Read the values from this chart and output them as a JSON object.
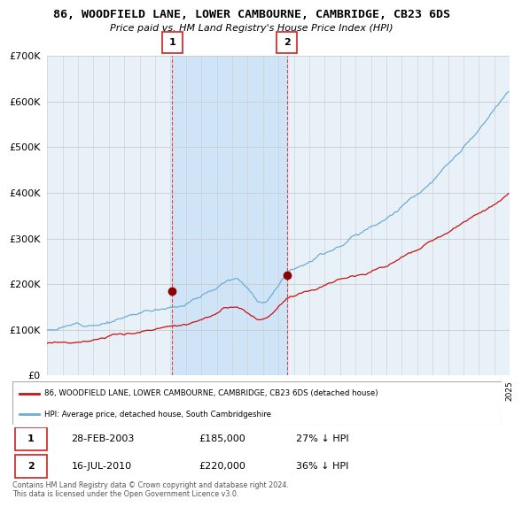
{
  "title": "86, WOODFIELD LANE, LOWER CAMBOURNE, CAMBRIDGE, CB23 6DS",
  "subtitle": "Price paid vs. HM Land Registry's House Price Index (HPI)",
  "legend_line1": "86, WOODFIELD LANE, LOWER CAMBOURNE, CAMBRIDGE, CB23 6DS (detached house)",
  "legend_line2": "HPI: Average price, detached house, South Cambridgeshire",
  "sale1_date": "28-FEB-2003",
  "sale1_price": "£185,000",
  "sale1_hpi": "27% ↓ HPI",
  "sale2_date": "16-JUL-2010",
  "sale2_price": "£220,000",
  "sale2_hpi": "36% ↓ HPI",
  "footnote": "Contains HM Land Registry data © Crown copyright and database right 2024.\nThis data is licensed under the Open Government Licence v3.0.",
  "hpi_color": "#6baed6",
  "price_color": "#cc1111",
  "marker1_x": 2003.12,
  "marker1_y": 185000,
  "marker2_x": 2010.54,
  "marker2_y": 220000,
  "ylim": [
    0,
    700000
  ],
  "xlim_start": 1995,
  "xlim_end": 2025,
  "background_color": "#e8f0f8",
  "shade_color": "#d0e4f7"
}
